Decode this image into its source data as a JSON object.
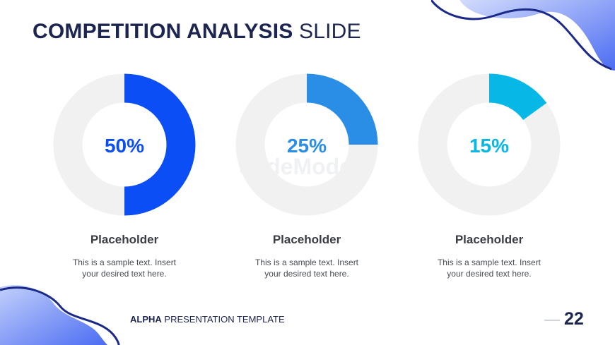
{
  "slide": {
    "title_bold": "COMPETITION ANALYSIS",
    "title_light": "SLIDE",
    "watermark": "SlideModel",
    "footer_bold": "ALPHA",
    "footer_rest": "PRESENTATION TEMPLATE",
    "page_number": "22"
  },
  "colors": {
    "title": "#1b2550",
    "track": "#f1f1f1",
    "accent_1": "#0c4ef5",
    "accent_2": "#2a8de6",
    "accent_3": "#07b7e6",
    "decor_gradient_start": "#c3d0fb",
    "decor_gradient_end": "#4b6cf2"
  },
  "chart_data": [
    {
      "type": "pie",
      "subtype": "donut",
      "value": 50,
      "label": "50%",
      "color": "#0c4ef5",
      "heading": "Placeholder",
      "text_line1": "This is a sample text. Insert",
      "text_line2": "your desired text here."
    },
    {
      "type": "pie",
      "subtype": "donut",
      "value": 25,
      "label": "25%",
      "color": "#2a8de6",
      "heading": "Placeholder",
      "text_line1": "This is a sample text. Insert",
      "text_line2": "your desired text here."
    },
    {
      "type": "pie",
      "subtype": "donut",
      "value": 15,
      "label": "15%",
      "color": "#07b7e6",
      "heading": "Placeholder",
      "text_line1": "This is a sample text. Insert",
      "text_line2": "your desired text here."
    }
  ]
}
